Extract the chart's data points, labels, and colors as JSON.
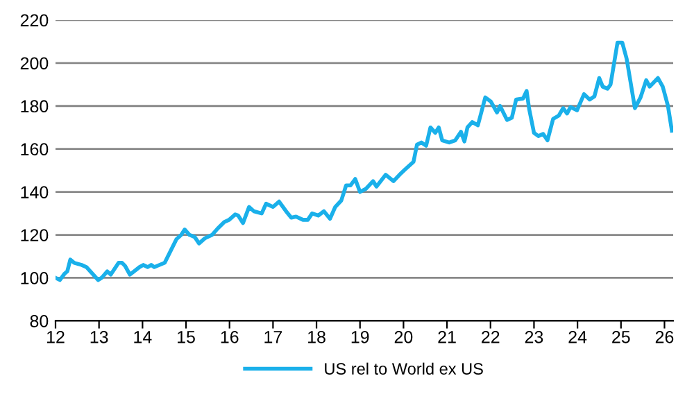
{
  "chart_data": {
    "type": "line",
    "legend": "bottom",
    "grid": "y",
    "marker": "none",
    "line_style": "solid",
    "xlim": [
      12,
      26.2
    ],
    "xticks": [
      12,
      13,
      14,
      15,
      16,
      17,
      18,
      19,
      20,
      21,
      22,
      23,
      24,
      25,
      26
    ],
    "ylim": [
      80,
      220
    ],
    "yticks": [
      80,
      100,
      120,
      140,
      160,
      180,
      200,
      220
    ],
    "series": [
      {
        "name": "US rel to World ex US",
        "color": "#1ab0ea",
        "x": [
          12.0,
          12.1,
          12.21,
          12.27,
          12.34,
          12.43,
          12.6,
          12.71,
          12.98,
          13.06,
          13.19,
          13.27,
          13.45,
          13.53,
          13.6,
          13.71,
          13.93,
          14.02,
          14.12,
          14.2,
          14.27,
          14.51,
          14.78,
          14.89,
          14.97,
          15.08,
          15.2,
          15.3,
          15.44,
          15.6,
          15.73,
          15.88,
          15.99,
          16.13,
          16.2,
          16.31,
          16.45,
          16.56,
          16.74,
          16.84,
          17.0,
          17.14,
          17.3,
          17.42,
          17.53,
          17.69,
          17.8,
          17.9,
          18.04,
          18.17,
          18.31,
          18.43,
          18.57,
          18.68,
          18.78,
          18.89,
          19.0,
          19.14,
          19.3,
          19.38,
          19.59,
          19.77,
          19.91,
          20.04,
          20.23,
          20.31,
          20.41,
          20.52,
          20.62,
          20.73,
          20.81,
          20.89,
          21.05,
          21.19,
          21.32,
          21.4,
          21.47,
          21.58,
          21.71,
          21.88,
          22.01,
          22.15,
          22.22,
          22.38,
          22.49,
          22.59,
          22.75,
          22.83,
          22.89,
          23.0,
          23.1,
          23.21,
          23.31,
          23.44,
          23.57,
          23.67,
          23.76,
          23.84,
          23.99,
          24.15,
          24.28,
          24.39,
          24.5,
          24.58,
          24.69,
          24.76,
          24.92,
          25.03,
          25.13,
          25.32,
          25.45,
          25.58,
          25.66,
          25.85,
          25.96,
          26.08,
          26.17
        ],
        "values": [
          100,
          99,
          102,
          103,
          108.5,
          107,
          106,
          105,
          99,
          100,
          103,
          101.5,
          107,
          107,
          105.5,
          101.5,
          105,
          106,
          105,
          106,
          105,
          107,
          118,
          120,
          122.5,
          120,
          119,
          116,
          118.5,
          120,
          123,
          126,
          127,
          129.5,
          129,
          125.5,
          133,
          131,
          130,
          134.5,
          133,
          135.5,
          131,
          128,
          128.5,
          127,
          127,
          130,
          129,
          131,
          127.5,
          133,
          136,
          143,
          143,
          146,
          140,
          141.5,
          145,
          142.5,
          148,
          145,
          148,
          150.5,
          154,
          162,
          163,
          161.5,
          170,
          167.5,
          170,
          164,
          163,
          164,
          168,
          163.5,
          170,
          172.5,
          171,
          184,
          182,
          177,
          180,
          173.5,
          174.5,
          183,
          183.5,
          187,
          178.5,
          167.5,
          166,
          167,
          164,
          174,
          175.5,
          179,
          176.5,
          179.5,
          178,
          185.5,
          183,
          184.5,
          193,
          189,
          188,
          190,
          209.5,
          209.5,
          202,
          179,
          184,
          192,
          189,
          193,
          189,
          180,
          168.5
        ]
      }
    ]
  }
}
